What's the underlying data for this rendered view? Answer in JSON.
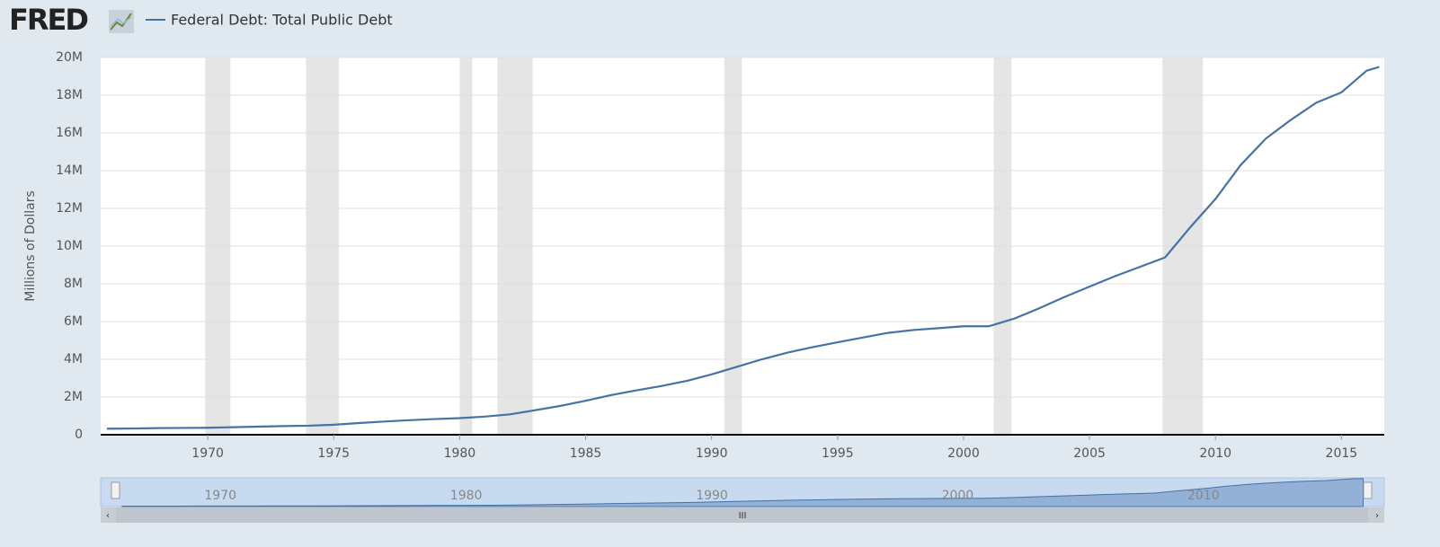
{
  "chart_data": {
    "type": "line",
    "logo": "FRED",
    "y_label": "Millions of Dollars",
    "x": [
      1966,
      1967,
      1968,
      1969,
      1970,
      1971,
      1972,
      1973,
      1974,
      1975,
      1976,
      1977,
      1978,
      1979,
      1980,
      1981,
      1982,
      1983,
      1984,
      1985,
      1986,
      1987,
      1988,
      1989,
      1990,
      1991,
      1992,
      1993,
      1994,
      1995,
      1996,
      1997,
      1998,
      1999,
      2000,
      2001,
      2002,
      2003,
      2004,
      2005,
      2006,
      2007,
      2008,
      2009,
      2010,
      2011,
      2012,
      2013,
      2014,
      2015,
      2016,
      2016.5
    ],
    "series": [
      {
        "name": "Federal Debt: Total Public Debt",
        "color": "#4572a7",
        "values": [
          320000,
          330000,
          350000,
          360000,
          370000,
          400000,
          430000,
          460000,
          480000,
          530000,
          620000,
          700000,
          770000,
          830000,
          880000,
          960000,
          1080000,
          1300000,
          1530000,
          1800000,
          2100000,
          2350000,
          2580000,
          2850000,
          3200000,
          3600000,
          4000000,
          4350000,
          4640000,
          4900000,
          5150000,
          5400000,
          5550000,
          5650000,
          5750000,
          5750000,
          6150000,
          6700000,
          7300000,
          7850000,
          8400000,
          8900000,
          9400000,
          11000000,
          12500000,
          14300000,
          15700000,
          16700000,
          17600000,
          18150000,
          19300000,
          19500000
        ]
      }
    ],
    "xlim": [
      1965.75,
      2016.7
    ],
    "xticks": [
      1970,
      1975,
      1980,
      1985,
      1990,
      1995,
      2000,
      2005,
      2010,
      2015
    ],
    "ylim": [
      0,
      20000000
    ],
    "yticks": [
      {
        "value": 0,
        "label": "0"
      },
      {
        "value": 2000000,
        "label": "2M"
      },
      {
        "value": 4000000,
        "label": "4M"
      },
      {
        "value": 6000000,
        "label": "6M"
      },
      {
        "value": 8000000,
        "label": "8M"
      },
      {
        "value": 10000000,
        "label": "10M"
      },
      {
        "value": 12000000,
        "label": "12M"
      },
      {
        "value": 14000000,
        "label": "14M"
      },
      {
        "value": 16000000,
        "label": "16M"
      },
      {
        "value": 18000000,
        "label": "18M"
      },
      {
        "value": 20000000,
        "label": "20M"
      }
    ],
    "grid": true,
    "recessions": [
      [
        1969.9,
        1970.9
      ],
      [
        1973.9,
        1975.2
      ],
      [
        1980.0,
        1980.5
      ],
      [
        1981.5,
        1982.9
      ],
      [
        1990.5,
        1991.2
      ],
      [
        2001.2,
        2001.9
      ],
      [
        2007.9,
        2009.5
      ]
    ],
    "navigator_xticks": [
      1970,
      1980,
      1990,
      2000,
      2010
    ]
  }
}
